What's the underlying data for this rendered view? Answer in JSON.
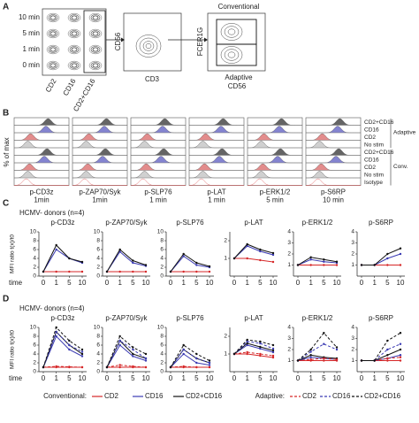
{
  "panel_a": {
    "label": "A",
    "times": [
      "10 min",
      "5 min",
      "1 min",
      "0 min"
    ],
    "plot1_x": [
      "CD2",
      "CD16",
      "CD2+CD16"
    ],
    "plot2_y": "CD56",
    "plot2_x": "CD3",
    "plot3_y": "FCER1G",
    "plot3_x": "CD56",
    "gates": [
      "Conventional",
      "Adaptive"
    ]
  },
  "panel_b": {
    "label": "B",
    "y_label": "% of max",
    "columns": [
      {
        "name": "p-CD3z",
        "time": "1min"
      },
      {
        "name": "p-ZAP70/Syk",
        "time": "1min"
      },
      {
        "name": "p-SLP76",
        "time": "1 min"
      },
      {
        "name": "p-LAT",
        "time": "1 min"
      },
      {
        "name": "p-ERK1/2",
        "time": "5 min"
      },
      {
        "name": "p-S6RP",
        "time": "10 min"
      }
    ],
    "rows": [
      "CD2+CD16",
      "CD16",
      "CD2",
      "No stim",
      "CD2+CD16",
      "CD16",
      "CD2",
      "No stim",
      "Isotype"
    ],
    "groups": [
      "Adaptive",
      "Conv."
    ]
  },
  "panel_c": {
    "label": "C",
    "subtitle": "HCMV- donors (n=4)"
  },
  "panel_d": {
    "label": "D",
    "subtitle": "HCMV- donors (n=4)"
  },
  "legend": {
    "groups": [
      "Conventional:",
      "Adaptive:"
    ]
  },
  "chart_data": [
    {
      "type": "line",
      "title": "p-CD3z",
      "y_label": "MFI ratio t(x)/t0",
      "x_label": "time",
      "categories": [
        "0",
        "1",
        "5",
        "10"
      ],
      "ylim": [
        0,
        10
      ],
      "yticks": [
        0,
        2,
        4,
        6,
        8,
        10
      ],
      "series": [
        {
          "name": "CD2",
          "color": "#d62728",
          "values": [
            1,
            1,
            1,
            1
          ]
        },
        {
          "name": "CD16",
          "color": "#3b3bb3",
          "values": [
            1,
            6,
            4,
            3
          ]
        },
        {
          "name": "CD2+CD16",
          "color": "#111111",
          "values": [
            1,
            7,
            4,
            3.2
          ]
        }
      ]
    },
    {
      "type": "line",
      "title": "p-ZAP70/Syk",
      "categories": [
        "0",
        "1",
        "5",
        "10"
      ],
      "ylim": [
        0,
        10
      ],
      "yticks": [
        0,
        2,
        4,
        6,
        8,
        10
      ],
      "series": [
        {
          "name": "CD2",
          "color": "#d62728",
          "values": [
            1,
            1,
            1,
            1
          ]
        },
        {
          "name": "CD16",
          "color": "#3b3bb3",
          "values": [
            1,
            5.5,
            3,
            2.3
          ]
        },
        {
          "name": "CD2+CD16",
          "color": "#111111",
          "values": [
            1,
            6,
            3.5,
            2.5
          ]
        }
      ]
    },
    {
      "type": "line",
      "title": "p-SLP76",
      "categories": [
        "0",
        "1",
        "5",
        "10"
      ],
      "ylim": [
        0,
        10
      ],
      "yticks": [
        0,
        2,
        4,
        6,
        8,
        10
      ],
      "series": [
        {
          "name": "CD2",
          "color": "#d62728",
          "values": [
            1,
            1,
            1,
            1
          ]
        },
        {
          "name": "CD16",
          "color": "#3b3bb3",
          "values": [
            1,
            4.5,
            2.5,
            2
          ]
        },
        {
          "name": "CD2+CD16",
          "color": "#111111",
          "values": [
            1,
            5,
            3,
            2.2
          ]
        }
      ]
    },
    {
      "type": "line",
      "title": "p-LAT",
      "categories": [
        "0",
        "1",
        "5",
        "10"
      ],
      "ylim": [
        0,
        2.5
      ],
      "yticks": [
        1,
        2
      ],
      "series": [
        {
          "name": "CD2",
          "color": "#d62728",
          "values": [
            1,
            1,
            0.9,
            0.8
          ]
        },
        {
          "name": "CD16",
          "color": "#3b3bb3",
          "values": [
            1,
            1.7,
            1.4,
            1.2
          ]
        },
        {
          "name": "CD2+CD16",
          "color": "#111111",
          "values": [
            1,
            1.8,
            1.5,
            1.3
          ]
        }
      ]
    },
    {
      "type": "line",
      "title": "p-ERK1/2",
      "categories": [
        "0",
        "1",
        "5",
        "10"
      ],
      "ylim": [
        0,
        4
      ],
      "yticks": [
        1,
        2,
        3,
        4
      ],
      "series": [
        {
          "name": "CD2",
          "color": "#d62728",
          "values": [
            1,
            1,
            1,
            1
          ]
        },
        {
          "name": "CD16",
          "color": "#3b3bb3",
          "values": [
            1,
            1.5,
            1.3,
            1.2
          ]
        },
        {
          "name": "CD2+CD16",
          "color": "#111111",
          "values": [
            1,
            1.7,
            1.5,
            1.3
          ]
        }
      ]
    },
    {
      "type": "line",
      "title": "p-S6RP",
      "categories": [
        "0",
        "1",
        "5",
        "10"
      ],
      "ylim": [
        0,
        4
      ],
      "yticks": [
        1,
        2,
        3,
        4
      ],
      "series": [
        {
          "name": "CD2",
          "color": "#d62728",
          "values": [
            1,
            1,
            1,
            1
          ]
        },
        {
          "name": "CD16",
          "color": "#3b3bb3",
          "values": [
            1,
            1,
            1.6,
            2
          ]
        },
        {
          "name": "CD2+CD16",
          "color": "#111111",
          "values": [
            1,
            1,
            2,
            2.5
          ]
        }
      ]
    },
    {
      "type": "line",
      "title": "p-CD3z",
      "y_label": "MFI ratio t(x)/t0",
      "x_label": "time",
      "categories": [
        "0",
        "1",
        "5",
        "10"
      ],
      "ylim": [
        0,
        10
      ],
      "yticks": [
        0,
        2,
        4,
        6,
        8,
        10
      ],
      "series": [
        {
          "name": "CD2",
          "color": "#d62728",
          "values": [
            1,
            1,
            1,
            1
          ]
        },
        {
          "name": "CD16",
          "color": "#3b3bb3",
          "values": [
            1,
            8,
            5,
            3.5
          ]
        },
        {
          "name": "CD2+CD16",
          "color": "#111111",
          "values": [
            1,
            9,
            6,
            4
          ]
        },
        {
          "name": "CD2",
          "color": "#d62728",
          "dash": true,
          "values": [
            1,
            1.2,
            1.1,
            1
          ]
        },
        {
          "name": "CD16",
          "color": "#3b3bb3",
          "dash": true,
          "values": [
            1,
            9,
            6,
            4.5
          ]
        },
        {
          "name": "CD2+CD16",
          "color": "#111111",
          "dash": true,
          "values": [
            1,
            10,
            7,
            5
          ]
        }
      ]
    },
    {
      "type": "line",
      "title": "p-ZAP70/Syk",
      "categories": [
        "0",
        "1",
        "5",
        "10"
      ],
      "ylim": [
        0,
        10
      ],
      "yticks": [
        0,
        2,
        4,
        6,
        8,
        10
      ],
      "series": [
        {
          "name": "CD2",
          "color": "#d62728",
          "values": [
            1,
            1,
            1,
            1
          ]
        },
        {
          "name": "CD16",
          "color": "#3b3bb3",
          "values": [
            1,
            6,
            3.5,
            2.5
          ]
        },
        {
          "name": "CD2+CD16",
          "color": "#111111",
          "values": [
            1,
            7,
            4,
            3
          ]
        },
        {
          "name": "CD2",
          "color": "#d62728",
          "dash": true,
          "values": [
            1,
            1.5,
            1.2,
            1
          ]
        },
        {
          "name": "CD16",
          "color": "#3b3bb3",
          "dash": true,
          "values": [
            1,
            7,
            5,
            3
          ]
        },
        {
          "name": "CD2+CD16",
          "color": "#111111",
          "dash": true,
          "values": [
            1,
            8,
            5.5,
            4
          ]
        }
      ]
    },
    {
      "type": "line",
      "title": "p-SLP76",
      "categories": [
        "0",
        "1",
        "5",
        "10"
      ],
      "ylim": [
        0,
        10
      ],
      "yticks": [
        0,
        2,
        4,
        6,
        8,
        10
      ],
      "series": [
        {
          "name": "CD2",
          "color": "#d62728",
          "values": [
            1,
            1,
            1,
            1
          ]
        },
        {
          "name": "CD16",
          "color": "#3b3bb3",
          "values": [
            1,
            4,
            2,
            1.5
          ]
        },
        {
          "name": "CD2+CD16",
          "color": "#111111",
          "values": [
            1,
            5,
            3,
            2
          ]
        },
        {
          "name": "CD2",
          "color": "#d62728",
          "dash": true,
          "values": [
            1,
            1.2,
            1,
            1
          ]
        },
        {
          "name": "CD16",
          "color": "#3b3bb3",
          "dash": true,
          "values": [
            1,
            5,
            3,
            2
          ]
        },
        {
          "name": "CD2+CD16",
          "color": "#111111",
          "dash": true,
          "values": [
            1,
            6,
            4,
            2.5
          ]
        }
      ]
    },
    {
      "type": "line",
      "title": "p-LAT",
      "categories": [
        "0",
        "1",
        "5",
        "10"
      ],
      "ylim": [
        0,
        2.5
      ],
      "yticks": [
        1,
        2
      ],
      "series": [
        {
          "name": "CD2",
          "color": "#d62728",
          "values": [
            1,
            1,
            0.9,
            0.8
          ]
        },
        {
          "name": "CD16",
          "color": "#3b3bb3",
          "values": [
            1,
            1.5,
            1.3,
            1.1
          ]
        },
        {
          "name": "CD2+CD16",
          "color": "#111111",
          "values": [
            1,
            1.6,
            1.4,
            1.2
          ]
        },
        {
          "name": "CD2",
          "color": "#d62728",
          "dash": true,
          "values": [
            1,
            1.1,
            1,
            0.9
          ]
        },
        {
          "name": "CD16",
          "color": "#3b3bb3",
          "dash": true,
          "values": [
            1,
            1.7,
            1.6,
            1.3
          ]
        },
        {
          "name": "CD2+CD16",
          "color": "#111111",
          "dash": true,
          "values": [
            1,
            1.8,
            1.7,
            1.5
          ]
        }
      ]
    },
    {
      "type": "line",
      "title": "p-ERK1/2",
      "categories": [
        "0",
        "1",
        "5",
        "10"
      ],
      "ylim": [
        0,
        4
      ],
      "yticks": [
        1,
        2,
        3,
        4
      ],
      "series": [
        {
          "name": "CD2",
          "color": "#d62728",
          "values": [
            1,
            1,
            1,
            1
          ]
        },
        {
          "name": "CD16",
          "color": "#3b3bb3",
          "values": [
            1,
            1.3,
            1.2,
            1.1
          ]
        },
        {
          "name": "CD2+CD16",
          "color": "#111111",
          "values": [
            1,
            1.5,
            1.3,
            1.2
          ]
        },
        {
          "name": "CD2",
          "color": "#d62728",
          "dash": true,
          "values": [
            1,
            1.1,
            1.2,
            1.1
          ]
        },
        {
          "name": "CD16",
          "color": "#3b3bb3",
          "dash": true,
          "values": [
            1,
            1.8,
            2.5,
            2
          ]
        },
        {
          "name": "CD2+CD16",
          "color": "#111111",
          "dash": true,
          "values": [
            1,
            2,
            3.5,
            2.2
          ]
        }
      ]
    },
    {
      "type": "line",
      "title": "p-S6RP",
      "categories": [
        "0",
        "1",
        "5",
        "10"
      ],
      "ylim": [
        0,
        4
      ],
      "yticks": [
        1,
        2,
        3,
        4
      ],
      "series": [
        {
          "name": "CD2",
          "color": "#d62728",
          "values": [
            1,
            1,
            1,
            1
          ]
        },
        {
          "name": "CD16",
          "color": "#3b3bb3",
          "values": [
            1,
            1,
            1.2,
            1.5
          ]
        },
        {
          "name": "CD2+CD16",
          "color": "#111111",
          "values": [
            1,
            1,
            1.5,
            2
          ]
        },
        {
          "name": "CD2",
          "color": "#d62728",
          "dash": true,
          "values": [
            1,
            1,
            1.2,
            1.3
          ]
        },
        {
          "name": "CD16",
          "color": "#3b3bb3",
          "dash": true,
          "values": [
            1,
            1,
            2,
            2.5
          ]
        },
        {
          "name": "CD2+CD16",
          "color": "#111111",
          "dash": true,
          "values": [
            1,
            1,
            2.8,
            3.5
          ]
        }
      ]
    }
  ]
}
